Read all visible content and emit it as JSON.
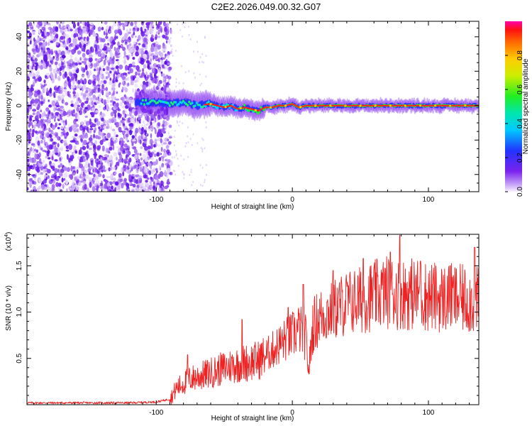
{
  "title": "C2E2.2026.049.00.32.G07",
  "colors": {
    "snr_line": "#ee2222",
    "trace_core": "#ff2020",
    "scatter": "#7a22ee",
    "axis": "#000000",
    "background": "#ffffff"
  },
  "chart_data": [
    {
      "type": "heatmap",
      "title": "C2E2.2026.049.00.32.G07",
      "xlabel": "Height of straight line (km)",
      "ylabel": "Frequency (Hz)",
      "xlim": [
        -195,
        137
      ],
      "ylim": [
        -50,
        49
      ],
      "xticks": [
        -100,
        0,
        100
      ],
      "xtick_labels": [
        "-100",
        "0",
        "100"
      ],
      "yticks": [
        -40,
        -20,
        0,
        20,
        40
      ],
      "ytick_labels": [
        "-40",
        "-20",
        "0",
        "20",
        "40"
      ],
      "noise_region_km": [
        -195,
        -93
      ],
      "trace": {
        "x": [
          -115,
          -100,
          -90,
          -80,
          -70,
          -60,
          -55,
          -50,
          -45,
          -40,
          -35,
          -30,
          -25,
          -20,
          -15,
          -10,
          -5,
          0,
          5,
          10,
          30,
          60,
          100,
          137
        ],
        "y": [
          2,
          2,
          1,
          2,
          0,
          1,
          0,
          -1,
          0,
          -2,
          -1,
          -2,
          -3,
          -1,
          -1,
          0,
          0,
          1,
          -1,
          0,
          0,
          0,
          0,
          0
        ]
      },
      "colorbar": {
        "label": "Normalized spectral amplitude",
        "range": [
          0.0,
          1.0
        ],
        "ticks": [
          0.0,
          0.2,
          0.4,
          0.6,
          0.8
        ],
        "tick_labels": [
          "0.0",
          "0.2",
          "0.4",
          "0.6",
          "0.8"
        ]
      }
    },
    {
      "type": "line",
      "xlabel": "Height of straight line (km)",
      "ylabel": "SNR (10 * v/v)",
      "scale_label": "(x10",
      "scale_exp": "4",
      "xlim": [
        -195,
        137
      ],
      "ylim": [
        0,
        1.84
      ],
      "xticks": [
        -100,
        0,
        100
      ],
      "xtick_labels": [
        "-100",
        "0",
        "100"
      ],
      "yticks": [
        0.5,
        1.0,
        1.5
      ],
      "ytick_labels": [
        "0.5",
        "1.0",
        "1.5"
      ],
      "series": [
        {
          "name": "SNR",
          "envelope_x": [
            -195,
            -120,
            -100,
            -90,
            -85,
            -75,
            -65,
            -55,
            -45,
            -35,
            -25,
            -18,
            -12,
            -5,
            0,
            5,
            10,
            12,
            15,
            20,
            30,
            40,
            50,
            60,
            70,
            80,
            90,
            100,
            110,
            120,
            130,
            137
          ],
          "envelope_y": [
            0.02,
            0.02,
            0.03,
            0.06,
            0.18,
            0.28,
            0.32,
            0.37,
            0.42,
            0.45,
            0.48,
            0.55,
            0.62,
            0.7,
            0.75,
            0.82,
            0.72,
            0.35,
            0.85,
            0.95,
            1.02,
            1.1,
            1.13,
            1.18,
            1.22,
            1.2,
            1.2,
            1.17,
            1.15,
            1.15,
            1.13,
            1.12
          ],
          "peaks": [
            [
              -77,
              0.54
            ],
            [
              -37,
              0.92
            ],
            [
              -3,
              1.05
            ],
            [
              8,
              1.3
            ],
            [
              30,
              1.45
            ],
            [
              52,
              1.58
            ],
            [
              72,
              1.65
            ],
            [
              79,
              1.83
            ],
            [
              94,
              1.55
            ],
            [
              116,
              1.5
            ],
            [
              134,
              1.7
            ]
          ]
        }
      ]
    }
  ]
}
